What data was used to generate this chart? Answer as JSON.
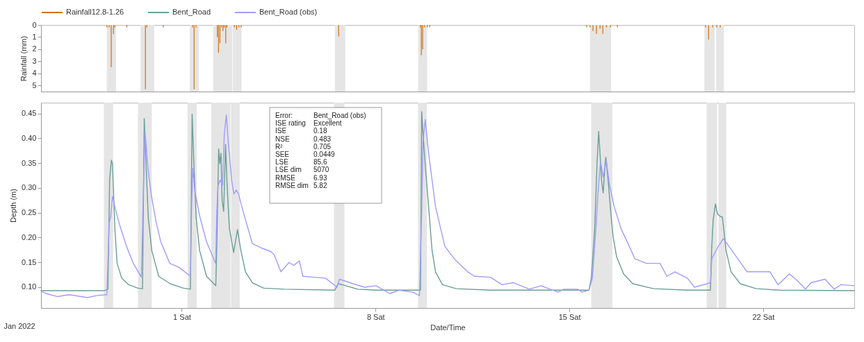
{
  "chart_data": [
    {
      "type": "bar",
      "ylabel": "Rainfall (mm)",
      "xlim": [
        "2021-12-26T22:00",
        "2022-01-25T07:00"
      ],
      "ylim": [
        5.5,
        0
      ],
      "yticks": [
        0,
        1,
        2,
        3,
        4,
        5
      ],
      "tick_labels": "y",
      "legend": "top left",
      "bands": [
        {
          "axis": "x",
          "from": "2021-12-29T04:30",
          "to": "2021-12-29T12:30",
          "color": "#e5e5e5"
        },
        {
          "axis": "x",
          "from": "2021-12-30T10:00",
          "to": "2021-12-30T22:00",
          "color": "#e5e5e5"
        },
        {
          "axis": "x",
          "from": "2022-01-01T05:00",
          "to": "2022-01-01T13:00",
          "color": "#e5e5e5"
        },
        {
          "axis": "x",
          "from": "2022-01-02T01:30",
          "to": "2022-01-02T18:15",
          "color": "#e5e5e5"
        },
        {
          "axis": "x",
          "from": "2022-01-02T18:45",
          "to": "2022-01-03T02:15",
          "color": "#e5e5e5"
        },
        {
          "axis": "x",
          "from": "2022-01-06T12:00",
          "to": "2022-01-06T21:00",
          "color": "#e5e5e5"
        },
        {
          "axis": "x",
          "from": "2022-01-09T12:45",
          "to": "2022-01-09T20:30",
          "color": "#e5e5e5"
        },
        {
          "axis": "x",
          "from": "2022-01-15T19:00",
          "to": "2022-01-16T13:20",
          "color": "#e5e5e5"
        },
        {
          "axis": "x",
          "from": "2022-01-19T23:00",
          "to": "2022-01-20T08:00",
          "color": "#e5e5e5"
        },
        {
          "axis": "x",
          "from": "2022-01-20T09:15",
          "to": "2022-01-20T16:00",
          "color": "#e5e5e5"
        }
      ],
      "series": [
        {
          "name": "Rainfall12.8-1.26",
          "color": "#d2700f",
          "x": [
            "2021-12-29T04:40",
            "2021-12-29T06:30",
            "2021-12-29T08:20",
            "2021-12-29T10:20",
            "2021-12-29T11:30",
            "2021-12-29T22:00",
            "2021-12-30T14:15",
            "2021-12-30T15:30",
            "2021-12-31T05:50",
            "2022-01-01T07:25",
            "2022-01-01T08:50",
            "2022-01-01T10:30",
            "2022-01-02T05:10",
            "2022-01-02T06:10",
            "2022-01-02T07:25",
            "2022-01-02T08:45",
            "2022-01-02T10:05",
            "2022-01-02T11:10",
            "2022-01-02T12:30",
            "2022-01-02T13:30",
            "2022-01-02T20:05",
            "2022-01-02T22:00",
            "2022-01-03T00:00",
            "2022-01-03T02:00",
            "2022-01-06T15:10",
            "2022-01-09T14:40",
            "2022-01-09T15:30",
            "2022-01-09T16:40",
            "2022-01-09T18:20",
            "2022-01-09T20:40",
            "2022-01-09T22:45",
            "2022-01-15T16:00",
            "2022-01-15T19:00",
            "2022-01-15T21:35",
            "2022-01-16T00:35",
            "2022-01-16T03:45",
            "2022-01-16T06:10",
            "2022-01-16T09:20",
            "2022-01-16T12:55",
            "2022-01-16T18:55",
            "2022-01-20T00:00",
            "2022-01-20T02:40",
            "2022-01-20T06:15",
            "2022-01-20T09:50",
            "2022-01-20T12:50"
          ],
          "values": [
            0.2,
            0.2,
            3.5,
            0.75,
            0.2,
            0.2,
            5.3,
            0.2,
            0.2,
            0.2,
            5.3,
            0.2,
            1.0,
            2.3,
            1.5,
            0.2,
            0.5,
            0.2,
            1.5,
            0.2,
            0.2,
            0.4,
            0.2,
            0.2,
            0.95,
            0.2,
            2.5,
            2.0,
            0.2,
            0.2,
            0.2,
            0.2,
            0.2,
            0.5,
            0.75,
            0.3,
            0.75,
            0.2,
            0.2,
            0.2,
            0.2,
            1.2,
            0.2,
            0.2,
            0.2
          ]
        }
      ]
    },
    {
      "type": "line",
      "xlabel": "Date/Time",
      "ylabel": "Depth (m)",
      "xlim": [
        "2021-12-26T22:00",
        "2022-01-25T07:00"
      ],
      "ylim": [
        0.058,
        0.472
      ],
      "yticks": [
        {
          "value": 0.1,
          "label": "0.10"
        },
        {
          "value": 0.15,
          "label": "0.15"
        },
        {
          "value": 0.2,
          "label": "0.20"
        },
        {
          "value": 0.25,
          "label": "0.25"
        },
        {
          "value": 0.3,
          "label": "0.30"
        },
        {
          "value": 0.35,
          "label": "0.35"
        },
        {
          "value": 0.4,
          "label": "0.40"
        },
        {
          "value": 0.45,
          "label": "0.45"
        }
      ],
      "xticks": [
        {
          "value": "2022-01-01",
          "label": "1 Sat"
        },
        {
          "value": "2022-01-08",
          "label": "8 Sat"
        },
        {
          "value": "2022-01-15",
          "label": "15 Sat"
        },
        {
          "value": "2022-01-22",
          "label": "22 Sat"
        }
      ],
      "legend": "top left",
      "annotations": [
        "Error:",
        "Bent_Road (obs)",
        "ISE rating",
        "Excellent",
        "ISE",
        "0.18",
        "NSE",
        "0.483",
        "R²",
        "0.705",
        "SEE",
        "0.0449",
        "LSE",
        "85.6",
        "LSE dim",
        "5070",
        "RMSE",
        "6.93",
        "RMSE dim",
        "5.82",
        "Jan 2022"
      ],
      "bands": [
        {
          "axis": "x",
          "from": "2021-12-29T04:30",
          "to": "2021-12-29T12:30",
          "color": "#e5e5e5"
        },
        {
          "axis": "x",
          "from": "2021-12-30T10:00",
          "to": "2021-12-30T22:00",
          "color": "#e5e5e5"
        },
        {
          "axis": "x",
          "from": "2022-01-01T05:00",
          "to": "2022-01-01T13:00",
          "color": "#e5e5e5"
        },
        {
          "axis": "x",
          "from": "2022-01-02T01:30",
          "to": "2022-01-02T18:15",
          "color": "#e5e5e5"
        },
        {
          "axis": "x",
          "from": "2022-01-02T18:45",
          "to": "2022-01-03T02:15",
          "color": "#e5e5e5"
        },
        {
          "axis": "x",
          "from": "2022-01-06T12:00",
          "to": "2022-01-06T21:00",
          "color": "#e5e5e5"
        },
        {
          "axis": "x",
          "from": "2022-01-09T12:45",
          "to": "2022-01-09T20:30",
          "color": "#e5e5e5"
        },
        {
          "axis": "x",
          "from": "2022-01-15T19:00",
          "to": "2022-01-16T13:20",
          "color": "#e5e5e5"
        },
        {
          "axis": "x",
          "from": "2022-01-19T23:00",
          "to": "2022-01-20T08:00",
          "color": "#e5e5e5"
        },
        {
          "axis": "x",
          "from": "2022-01-20T09:15",
          "to": "2022-01-20T16:00",
          "color": "#e5e5e5"
        }
      ],
      "series": [
        {
          "name": "Bent_Road",
          "color": "#6b9e95",
          "x": [
            "2021-12-26T22:00",
            "2021-12-29T05:00",
            "2021-12-29T08:00",
            "2021-12-29T09:30",
            "2021-12-29T11:00",
            "2021-12-29T12:00",
            "2021-12-29T13:00",
            "2021-12-29T14:00",
            "2021-12-29T16:00",
            "2021-12-29T20:00",
            "2021-12-30T02:00",
            "2021-12-30T10:00",
            "2021-12-30T14:00",
            "2021-12-30T15:30",
            "2021-12-30T17:00",
            "2021-12-30T19:00",
            "2021-12-30T22:00",
            "2021-12-31T04:00",
            "2021-12-31T14:00",
            "2022-01-01T01:30",
            "2022-01-01T07:30",
            "2022-01-01T09:00",
            "2022-01-01T10:30",
            "2022-01-01T12:30",
            "2022-01-01T15:30",
            "2022-01-01T21:30",
            "2022-01-02T05:30",
            "2022-01-02T06:30",
            "2022-01-02T08:00",
            "2022-01-02T09:00",
            "2022-01-02T10:00",
            "2022-01-02T11:00",
            "2022-01-02T12:20",
            "2022-01-02T14:00",
            "2022-01-02T15:20",
            "2022-01-02T17:20",
            "2022-01-02T21:00",
            "2022-01-03T00:20",
            "2022-01-03T03:15",
            "2022-01-03T07:15",
            "2022-01-03T13:15",
            "2022-01-03T23:00",
            "2022-01-04T17:00",
            "2022-01-06T12:40",
            "2022-01-06T15:40",
            "2022-01-06T20:40",
            "2022-01-07T08:30",
            "2022-01-08T00:30",
            "2022-01-09T15:00",
            "2022-01-09T16:00",
            "2022-01-09T17:00",
            "2022-01-09T19:00",
            "2022-01-09T22:00",
            "2022-01-10T01:00",
            "2022-01-10T04:00",
            "2022-01-10T10:00",
            "2022-01-10T22:00",
            "2022-01-12T03:40",
            "2022-01-15T17:00",
            "2022-01-15T19:00",
            "2022-01-15T22:00",
            "2022-01-16T00:00",
            "2022-01-16T01:25",
            "2022-01-16T02:35",
            "2022-01-16T04:00",
            "2022-01-16T05:20",
            "2022-01-16T07:00",
            "2022-01-16T07:40",
            "2022-01-16T10:00",
            "2022-01-16T12:00",
            "2022-01-16T14:00",
            "2022-01-16T17:00",
            "2022-01-16T23:00",
            "2022-01-17T07:00",
            "2022-01-18T01:00",
            "2022-01-19T06:30",
            "2022-01-20T02:20",
            "2022-01-20T03:20",
            "2022-01-20T04:40",
            "2022-01-20T06:40",
            "2022-01-20T08:20",
            "2022-01-20T11:15",
            "2022-01-20T12:35",
            "2022-01-20T13:50",
            "2022-01-20T15:50",
            "2022-01-20T20:10",
            "2022-01-21T04:10",
            "2022-01-21T18:00",
            "2022-01-22T14:00",
            "2022-01-25T07:00"
          ],
          "values": [
            0.093,
            0.093,
            0.096,
            0.318,
            0.356,
            0.349,
            0.283,
            0.218,
            0.148,
            0.118,
            0.105,
            0.098,
            0.097,
            0.44,
            0.349,
            0.24,
            0.174,
            0.122,
            0.107,
            0.098,
            0.096,
            0.449,
            0.349,
            0.24,
            0.174,
            0.122,
            0.103,
            0.196,
            0.379,
            0.349,
            0.37,
            0.275,
            0.253,
            0.388,
            0.305,
            0.218,
            0.17,
            0.216,
            0.174,
            0.131,
            0.109,
            0.098,
            0.096,
            0.094,
            0.107,
            0.104,
            0.096,
            0.094,
            0.094,
            0.454,
            0.414,
            0.349,
            0.262,
            0.174,
            0.131,
            0.105,
            0.097,
            0.094,
            0.094,
            0.118,
            0.218,
            0.349,
            0.414,
            0.37,
            0.314,
            0.29,
            0.349,
            0.362,
            0.305,
            0.248,
            0.201,
            0.161,
            0.127,
            0.107,
            0.097,
            0.094,
            0.094,
            0.174,
            0.235,
            0.268,
            0.248,
            0.242,
            0.242,
            0.218,
            0.174,
            0.131,
            0.107,
            0.097,
            0.094,
            0.093
          ]
        },
        {
          "name": "Bent_Road (obs)",
          "color": "#9f9cff",
          "x": [
            "2021-12-26T22:00",
            "2021-12-27T02:30",
            "2021-12-27T12:30",
            "2021-12-27T22:20",
            "2021-12-28T14:10",
            "2021-12-28T22:05",
            "2021-12-29T07:05",
            "2021-12-29T09:05",
            "2021-12-29T10:30",
            "2021-12-29T12:00",
            "2021-12-29T14:00",
            "2021-12-29T18:00",
            "2021-12-30T00:00",
            "2021-12-30T06:00",
            "2021-12-30T13:00",
            "2021-12-30T15:10",
            "2021-12-30T16:10",
            "2021-12-30T18:50",
            "2021-12-30T21:50",
            "2021-12-31T01:50",
            "2021-12-31T05:45",
            "2021-12-31T13:40",
            "2021-12-31T21:35",
            "2022-01-01T07:35",
            "2022-01-01T08:30",
            "2022-01-01T09:30",
            "2022-01-01T11:30",
            "2022-01-01T15:30",
            "2022-01-01T21:25",
            "2022-01-02T05:25",
            "2022-01-02T06:25",
            "2022-01-02T07:25",
            "2022-01-02T09:25",
            "2022-01-02T11:20",
            "2022-01-02T12:55",
            "2022-01-02T14:40",
            "2022-01-02T16:20",
            "2022-01-02T19:20",
            "2022-01-02T21:15",
            "2022-01-02T23:15",
            "2022-01-03T01:15",
            "2022-01-03T05:10",
            "2022-01-03T13:10",
            "2022-01-03T21:05",
            "2022-01-04T05:00",
            "2022-01-04T08:00",
            "2022-01-04T14:00",
            "2022-01-04T21:00",
            "2022-01-05T01:00",
            "2022-01-05T06:00",
            "2022-01-05T09:00",
            "2022-01-05T19:00",
            "2022-01-06T04:40",
            "2022-01-06T14:40",
            "2022-01-06T16:40",
            "2022-01-07T04:30",
            "2022-01-07T14:30",
            "2022-01-08T00:25",
            "2022-01-08T12:20",
            "2022-01-08T20:15",
            "2022-01-09T08:10",
            "2022-01-09T14:05",
            "2022-01-09T16:05",
            "2022-01-09T17:05",
            "2022-01-09T19:05",
            "2022-01-09T22:00",
            "2022-01-10T04:00",
            "2022-01-10T12:00",
            "2022-01-10T16:00",
            "2022-01-10T21:55",
            "2022-01-11T07:50",
            "2022-01-11T13:50",
            "2022-01-12T03:40",
            "2022-01-12T13:35",
            "2022-01-12T23:30",
            "2022-01-13T13:25",
            "2022-01-13T23:25",
            "2022-01-14T07:20",
            "2022-01-14T14:15",
            "2022-01-14T19:10",
            "2022-01-15T07:05",
            "2022-01-15T11:05",
            "2022-01-15T17:00",
            "2022-01-15T20:00",
            "2022-01-15T23:00",
            "2022-01-16T01:00",
            "2022-01-16T03:00",
            "2022-01-16T05:20",
            "2022-01-16T08:00",
            "2022-01-16T10:55",
            "2022-01-16T14:55",
            "2022-01-16T20:50",
            "2022-01-17T03:50",
            "2022-01-17T08:50",
            "2022-01-17T18:40",
            "2022-01-18T06:35",
            "2022-01-18T12:35",
            "2022-01-18T19:30",
            "2022-01-19T06:25",
            "2022-01-19T12:25",
            "2022-01-20T02:20",
            "2022-01-20T03:30",
            "2022-01-20T08:20",
            "2022-01-20T13:35",
            "2022-01-20T18:10",
            "2022-01-21T02:05",
            "2022-01-21T10:05",
            "2022-01-22T05:55",
            "2022-01-22T12:55",
            "2022-01-22T22:50",
            "2022-01-23T05:45",
            "2022-01-23T12:40",
            "2022-01-23T17:35",
            "2022-01-24T05:35",
            "2022-01-24T13:30",
            "2022-01-24T19:30",
            "2022-01-25T07:00"
          ],
          "values": [
            0.092,
            0.087,
            0.081,
            0.085,
            0.079,
            0.083,
            0.085,
            0.229,
            0.244,
            0.283,
            0.262,
            0.227,
            0.183,
            0.148,
            0.12,
            0.336,
            0.414,
            0.336,
            0.283,
            0.231,
            0.192,
            0.148,
            0.14,
            0.122,
            0.253,
            0.34,
            0.292,
            0.244,
            0.192,
            0.148,
            0.253,
            0.305,
            0.316,
            0.305,
            0.41,
            0.447,
            0.392,
            0.314,
            0.288,
            0.296,
            0.288,
            0.253,
            0.188,
            0.179,
            0.172,
            0.166,
            0.131,
            0.15,
            0.144,
            0.153,
            0.122,
            0.12,
            0.118,
            0.1,
            0.116,
            0.107,
            0.1,
            0.103,
            0.087,
            0.094,
            0.09,
            0.083,
            0.262,
            0.392,
            0.438,
            0.37,
            0.262,
            0.183,
            0.17,
            0.153,
            0.131,
            0.122,
            0.12,
            0.105,
            0.109,
            0.096,
            0.103,
            0.096,
            0.09,
            0.096,
            0.096,
            0.09,
            0.094,
            0.118,
            0.218,
            0.296,
            0.353,
            0.322,
            0.355,
            0.305,
            0.262,
            0.218,
            0.183,
            0.157,
            0.148,
            0.148,
            0.122,
            0.131,
            0.118,
            0.1,
            0.109,
            0.157,
            0.179,
            0.198,
            0.183,
            0.157,
            0.131,
            0.131,
            0.105,
            0.127,
            0.113,
            0.096,
            0.109,
            0.116,
            0.096,
            0.105,
            0.103
          ]
        }
      ]
    }
  ]
}
